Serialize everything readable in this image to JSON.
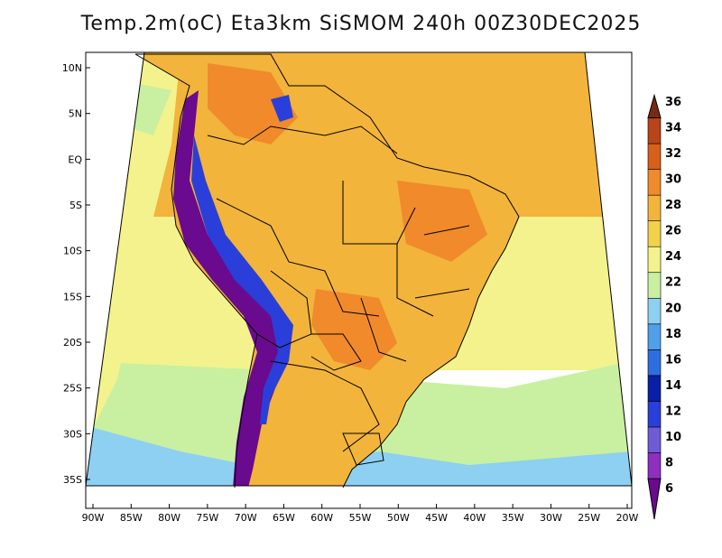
{
  "title": "Temp.2m(oC) Eta3km SiSMOM 240h 00Z30DEC2025",
  "map": {
    "lon_range": [
      -90,
      -20
    ],
    "lat_range": [
      -37,
      12
    ],
    "lon_ticks": [
      {
        "value": -90,
        "label": "90W"
      },
      {
        "value": -85,
        "label": "85W"
      },
      {
        "value": -80,
        "label": "80W"
      },
      {
        "value": -75,
        "label": "75W"
      },
      {
        "value": -70,
        "label": "70W"
      },
      {
        "value": -65,
        "label": "65W"
      },
      {
        "value": -60,
        "label": "60W"
      },
      {
        "value": -55,
        "label": "55W"
      },
      {
        "value": -50,
        "label": "50W"
      },
      {
        "value": -45,
        "label": "45W"
      },
      {
        "value": -40,
        "label": "40W"
      },
      {
        "value": -35,
        "label": "35W"
      },
      {
        "value": -30,
        "label": "30W"
      },
      {
        "value": -25,
        "label": "25W"
      },
      {
        "value": -20,
        "label": "20W"
      }
    ],
    "lat_ticks": [
      {
        "value": 10,
        "label": "10N"
      },
      {
        "value": 5,
        "label": "5N"
      },
      {
        "value": 0,
        "label": "EQ"
      },
      {
        "value": -5,
        "label": "5S"
      },
      {
        "value": -10,
        "label": "10S"
      },
      {
        "value": -15,
        "label": "15S"
      },
      {
        "value": -20,
        "label": "20S"
      },
      {
        "value": -25,
        "label": "25S"
      },
      {
        "value": -30,
        "label": "30S"
      },
      {
        "value": -35,
        "label": "35S"
      }
    ]
  },
  "colorbar": {
    "levels": [
      6,
      8,
      10,
      12,
      14,
      16,
      18,
      20,
      22,
      24,
      26,
      28,
      30,
      32,
      34,
      36
    ],
    "colors": [
      "#6a0a8e",
      "#8e2fc0",
      "#6f5bd6",
      "#2a3fd9",
      "#0a1fa8",
      "#2f6ee0",
      "#4fa0ea",
      "#8ed0f2",
      "#c8f0a0",
      "#f4f28c",
      "#f2d24a",
      "#f2b43a",
      "#f08a2a",
      "#d8601a",
      "#b8441a",
      "#7a2a10"
    ]
  },
  "colors": {
    "ocean_north": "#f2b43a",
    "ocean_mid": "#f4f28c",
    "ocean_south": "#c8f0a0",
    "ocean_far_south": "#8ed0f2",
    "land_warm": "#f2b43a",
    "land_hot": "#f08a2a",
    "andes_cold": "#6a0a8e",
    "boundary": "#000000"
  }
}
